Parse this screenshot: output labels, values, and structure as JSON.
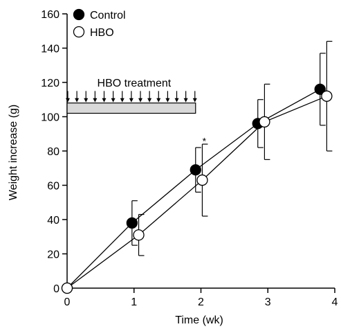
{
  "chart_data": {
    "type": "line",
    "xlabel": "Time (wk)",
    "ylabel": "Weight increase (g)",
    "xlim": [
      0,
      4
    ],
    "ylim": [
      0,
      160
    ],
    "xticks": [
      0,
      1,
      2,
      3,
      4
    ],
    "yticks": [
      0,
      20,
      40,
      60,
      80,
      100,
      120,
      140,
      160
    ],
    "grid": false,
    "legend_position": "top-left",
    "series": [
      {
        "name": "Control",
        "marker": "filled-circle",
        "color": "#000000",
        "x": [
          0,
          0.97,
          1.92,
          2.85,
          3.78
        ],
        "y": [
          0,
          38,
          69,
          96,
          116
        ],
        "err": [
          0,
          13,
          13,
          14,
          21
        ]
      },
      {
        "name": "HBO",
        "marker": "open-circle",
        "color": "#000000",
        "x": [
          0,
          1.07,
          2.02,
          2.95,
          3.88
        ],
        "y": [
          0,
          31,
          63,
          97,
          112
        ],
        "err": [
          0,
          12,
          21,
          22,
          32
        ]
      }
    ],
    "annotations": {
      "treatment_label": "HBO treatment",
      "treatment_start": 0,
      "treatment_end": 1.92,
      "treatment_arrow_count": 15,
      "treatment_bar_color": "#d9d9d9",
      "significance": [
        {
          "text": "*",
          "x": 2.05,
          "y": 87
        }
      ]
    }
  }
}
